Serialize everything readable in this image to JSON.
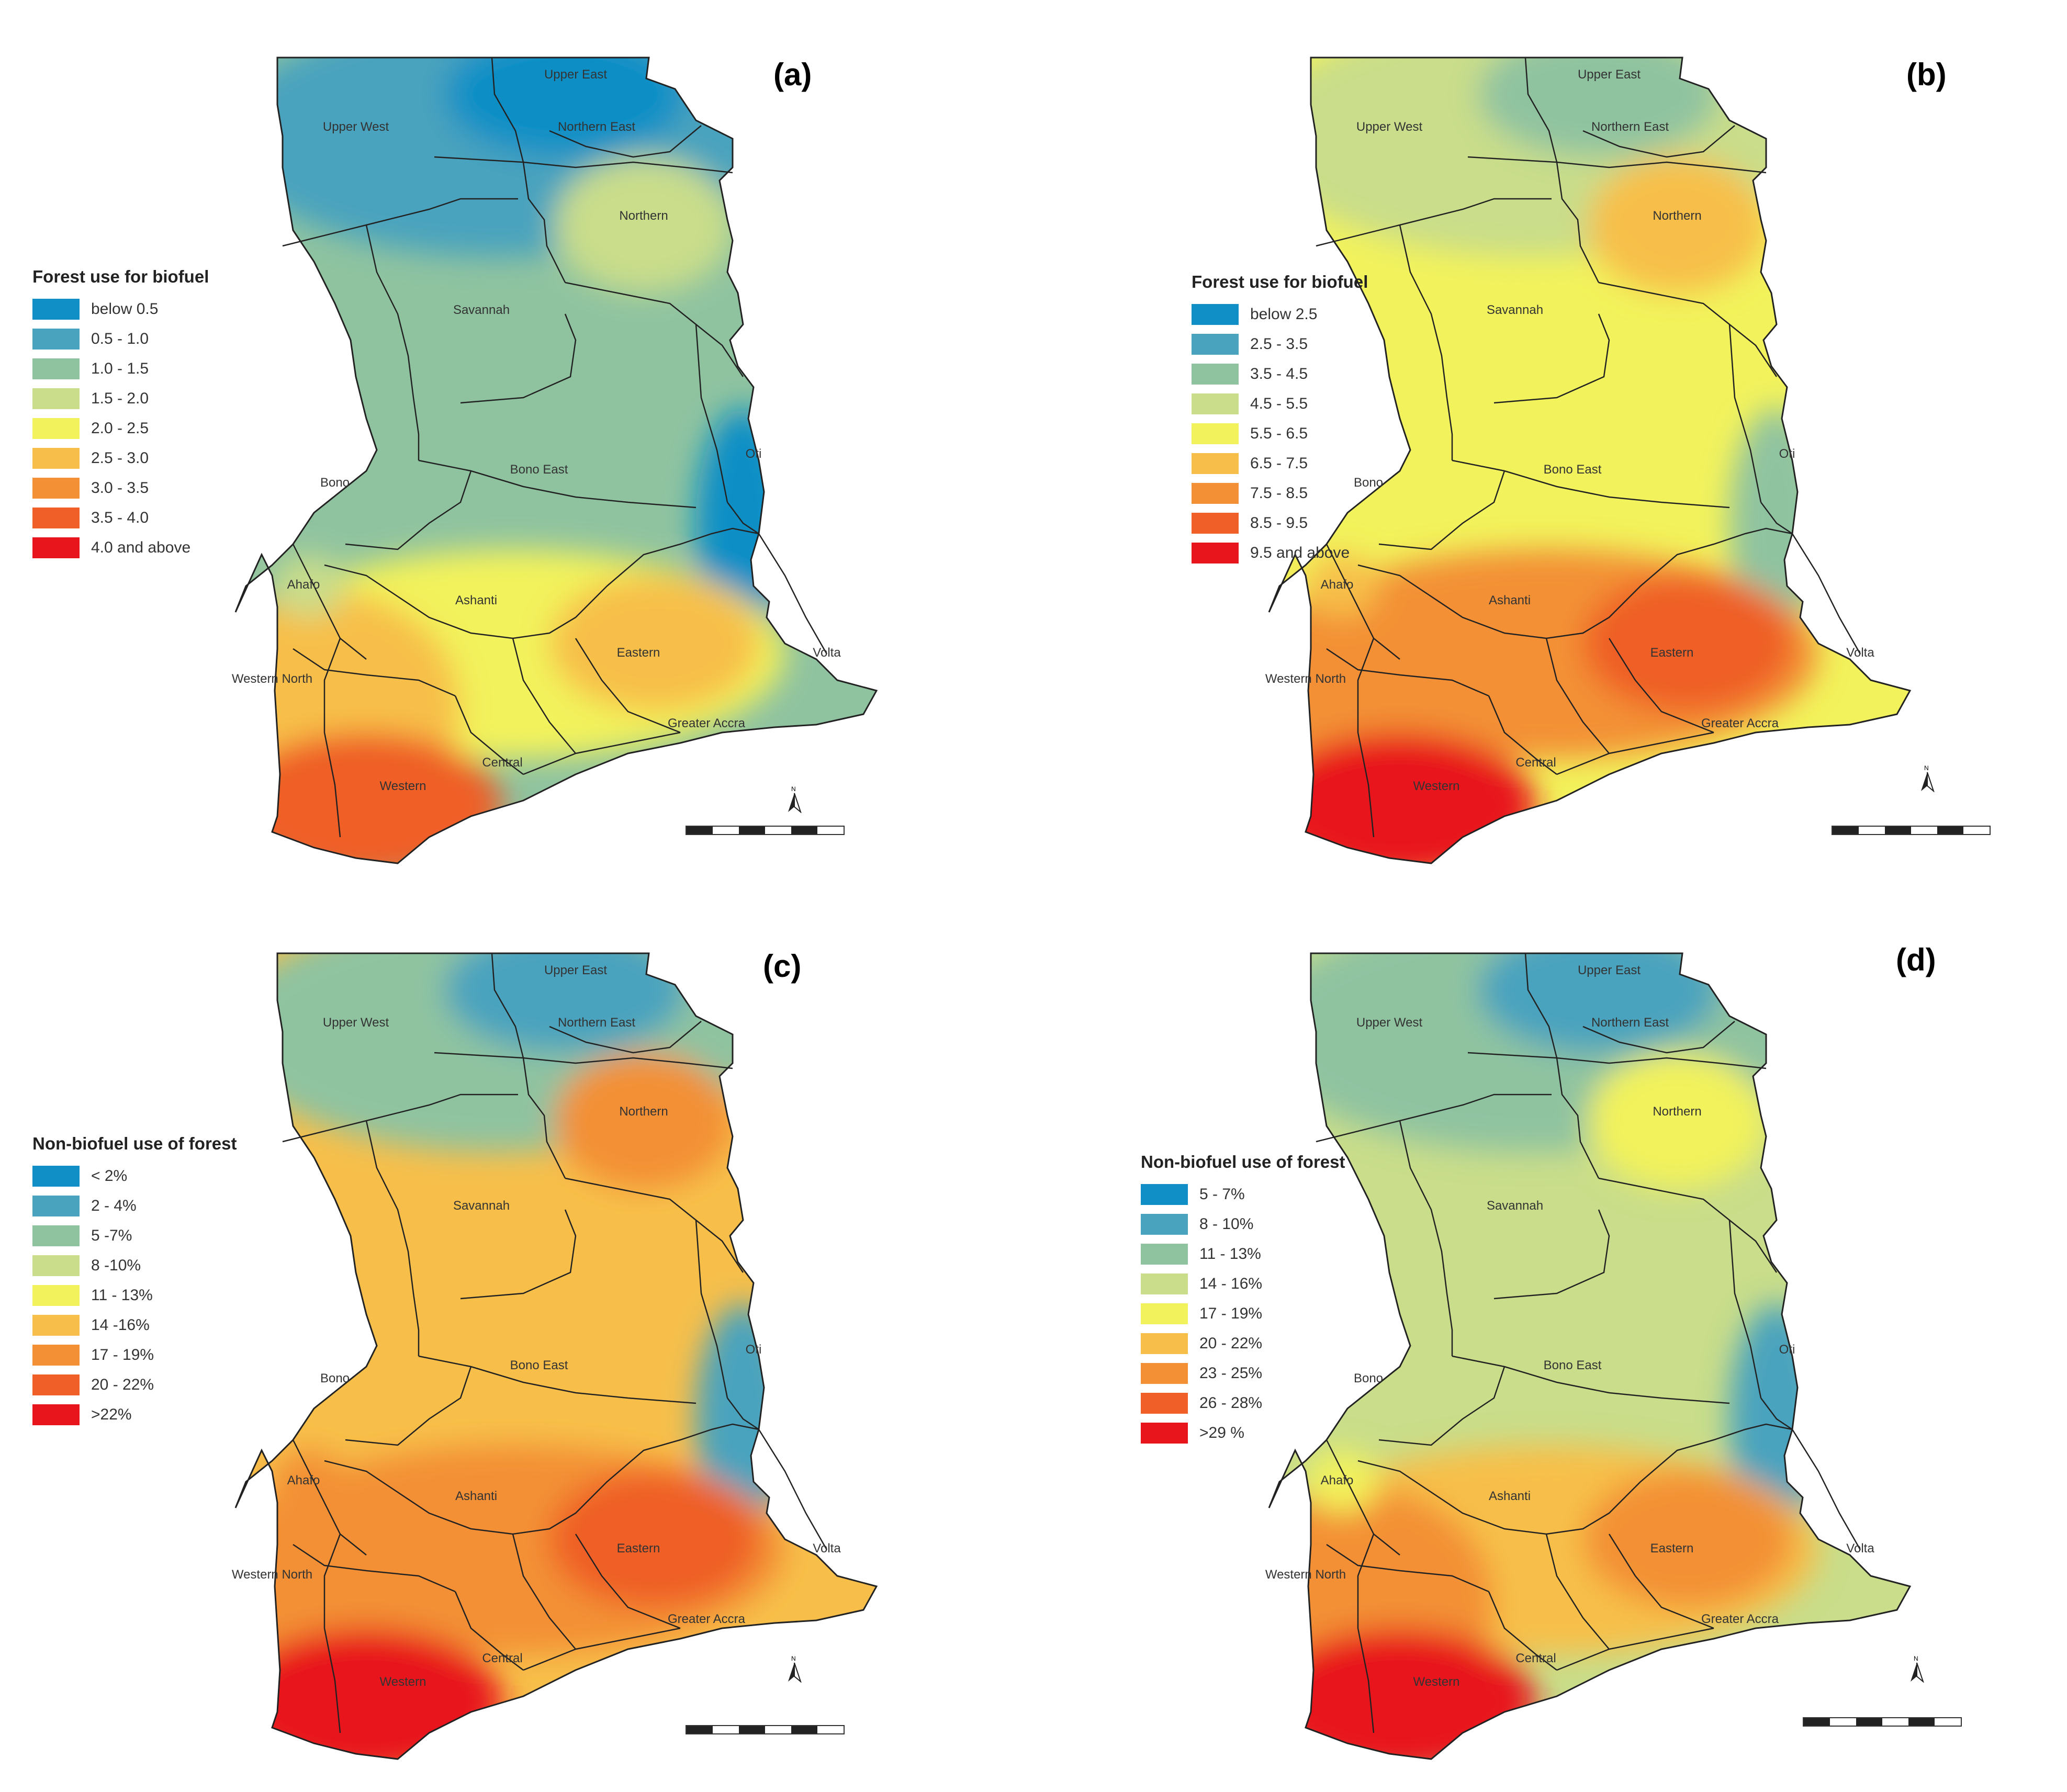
{
  "figure": {
    "panels": [
      {
        "label": "(a)",
        "legend_title": "Forest use for biofuel",
        "legend": [
          {
            "label": "below 0.5",
            "color": "#0f8fc6"
          },
          {
            "label": "0.5 - 1.0",
            "color": "#4aa3be"
          },
          {
            "label": "1.0 - 1.5",
            "color": "#8fc3a0"
          },
          {
            "label": "1.5 - 2.0",
            "color": "#c9dd8a"
          },
          {
            "label": "2.0 - 2.5",
            "color": "#f2f25c"
          },
          {
            "label": "2.5 - 3.0",
            "color": "#f7bf4a"
          },
          {
            "label": "3.0 - 3.5",
            "color": "#f39035"
          },
          {
            "label": "3.5 - 4.0",
            "color": "#ef5f27"
          },
          {
            "label": "4.0 and above",
            "color": "#e8161c"
          }
        ],
        "dominant": {
          "north": 1,
          "center": 2,
          "south": 4,
          "southwest": 7
        }
      },
      {
        "label": "(b)",
        "legend_title": "Forest use for biofuel",
        "legend": [
          {
            "label": "below 2.5",
            "color": "#0f8fc6"
          },
          {
            "label": "2.5 - 3.5",
            "color": "#4aa3be"
          },
          {
            "label": "3.5 - 4.5",
            "color": "#8fc3a0"
          },
          {
            "label": "4.5 - 5.5",
            "color": "#c9dd8a"
          },
          {
            "label": "5.5 - 6.5",
            "color": "#f2f25c"
          },
          {
            "label": "6.5 - 7.5",
            "color": "#f7bf4a"
          },
          {
            "label": "7.5 - 8.5",
            "color": "#f39035"
          },
          {
            "label": "8.5 - 9.5",
            "color": "#ef5f27"
          },
          {
            "label": "9.5 and above",
            "color": "#e8161c"
          }
        ],
        "dominant": {
          "north": 3,
          "center": 4,
          "south": 6,
          "southwest": 8
        }
      },
      {
        "label": "(c)",
        "legend_title": "Non-biofuel use of forest",
        "legend": [
          {
            "label": "< 2%",
            "color": "#0f8fc6"
          },
          {
            "label": "2 - 4%",
            "color": "#4aa3be"
          },
          {
            "label": "5 -7%",
            "color": "#8fc3a0"
          },
          {
            "label": "8 -10%",
            "color": "#c9dd8a"
          },
          {
            "label": "11 - 13%",
            "color": "#f2f25c"
          },
          {
            "label": "14 -16%",
            "color": "#f7bf4a"
          },
          {
            "label": "17 - 19%",
            "color": "#f39035"
          },
          {
            "label": "20 - 22%",
            "color": "#ef5f27"
          },
          {
            "label": ">22%",
            "color": "#e8161c"
          }
        ],
        "dominant": {
          "north": 2,
          "center": 5,
          "south": 6,
          "southwest": 8
        }
      },
      {
        "label": "(d)",
        "legend_title": "Non-biofuel use of forest",
        "legend": [
          {
            "label": "5 - 7%",
            "color": "#0f8fc6"
          },
          {
            "label": "8 - 10%",
            "color": "#4aa3be"
          },
          {
            "label": "11 - 13%",
            "color": "#8fc3a0"
          },
          {
            "label": "14 - 16%",
            "color": "#c9dd8a"
          },
          {
            "label": "17 - 19%",
            "color": "#f2f25c"
          },
          {
            "label": "20 - 22%",
            "color": "#f7bf4a"
          },
          {
            "label": "23 - 25%",
            "color": "#f39035"
          },
          {
            "label": "26 - 28%",
            "color": "#ef5f27"
          },
          {
            "label": ">29 %",
            "color": "#e8161c"
          }
        ],
        "dominant": {
          "north": 2,
          "center": 3,
          "south": 5,
          "southwest": 8
        }
      }
    ],
    "regions": [
      "Upper East",
      "Upper West",
      "Northern East",
      "Northern",
      "Savannah",
      "Bono",
      "Bono East",
      "Oti",
      "Ahafo",
      "Ashanti",
      "Eastern",
      "Volta",
      "Western North",
      "Greater Accra",
      "Central",
      "Western"
    ]
  }
}
